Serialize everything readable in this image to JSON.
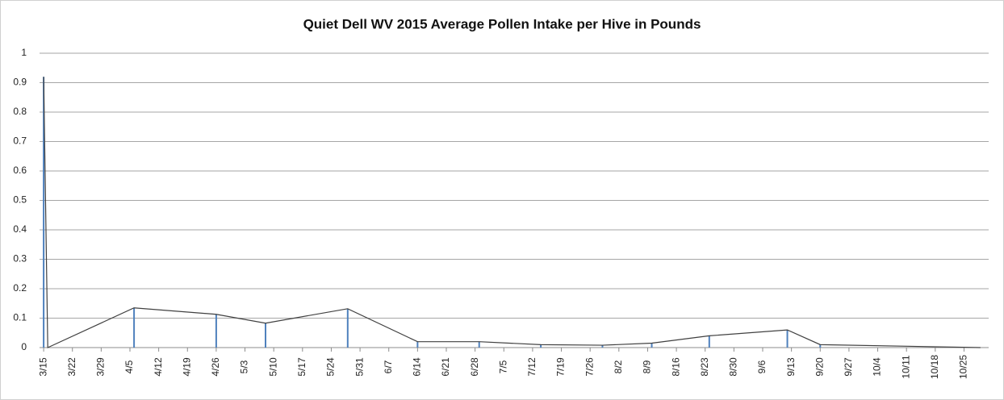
{
  "chart_data": {
    "type": "line",
    "title": "Quiet Dell WV 2015 Average Pollen Intake per Hive in Pounds",
    "x": [
      "3/15",
      "3/16",
      "4/6",
      "4/26",
      "5/8",
      "5/28",
      "6/14",
      "6/29",
      "7/14",
      "7/29",
      "8/10",
      "8/24",
      "9/12",
      "9/20",
      "10/29"
    ],
    "values": [
      0.92,
      0,
      0.135,
      0.113,
      0.083,
      0.132,
      0.02,
      0.02,
      0.01,
      0.008,
      0.015,
      0.04,
      0.06,
      0.01,
      0
    ],
    "color": "#404040",
    "drop_lines": true,
    "drop_line_color": "#4f81bd",
    "xlim": [
      "3/14",
      "10/31"
    ],
    "xticks": [
      "3/15",
      "3/22",
      "3/29",
      "4/5",
      "4/12",
      "4/19",
      "4/26",
      "5/3",
      "5/10",
      "5/17",
      "5/24",
      "5/31",
      "6/7",
      "6/14",
      "6/21",
      "6/28",
      "7/5",
      "7/12",
      "7/19",
      "7/26",
      "8/2",
      "8/9",
      "8/16",
      "8/23",
      "8/30",
      "9/6",
      "9/13",
      "9/20",
      "9/27",
      "10/4",
      "10/11",
      "10/18",
      "10/25"
    ],
    "ylim": [
      0,
      1
    ],
    "yticks": [
      0,
      0.1,
      0.2,
      0.3,
      0.4,
      0.5,
      0.6,
      0.7,
      0.8,
      0.9,
      1
    ],
    "grid": true
  }
}
